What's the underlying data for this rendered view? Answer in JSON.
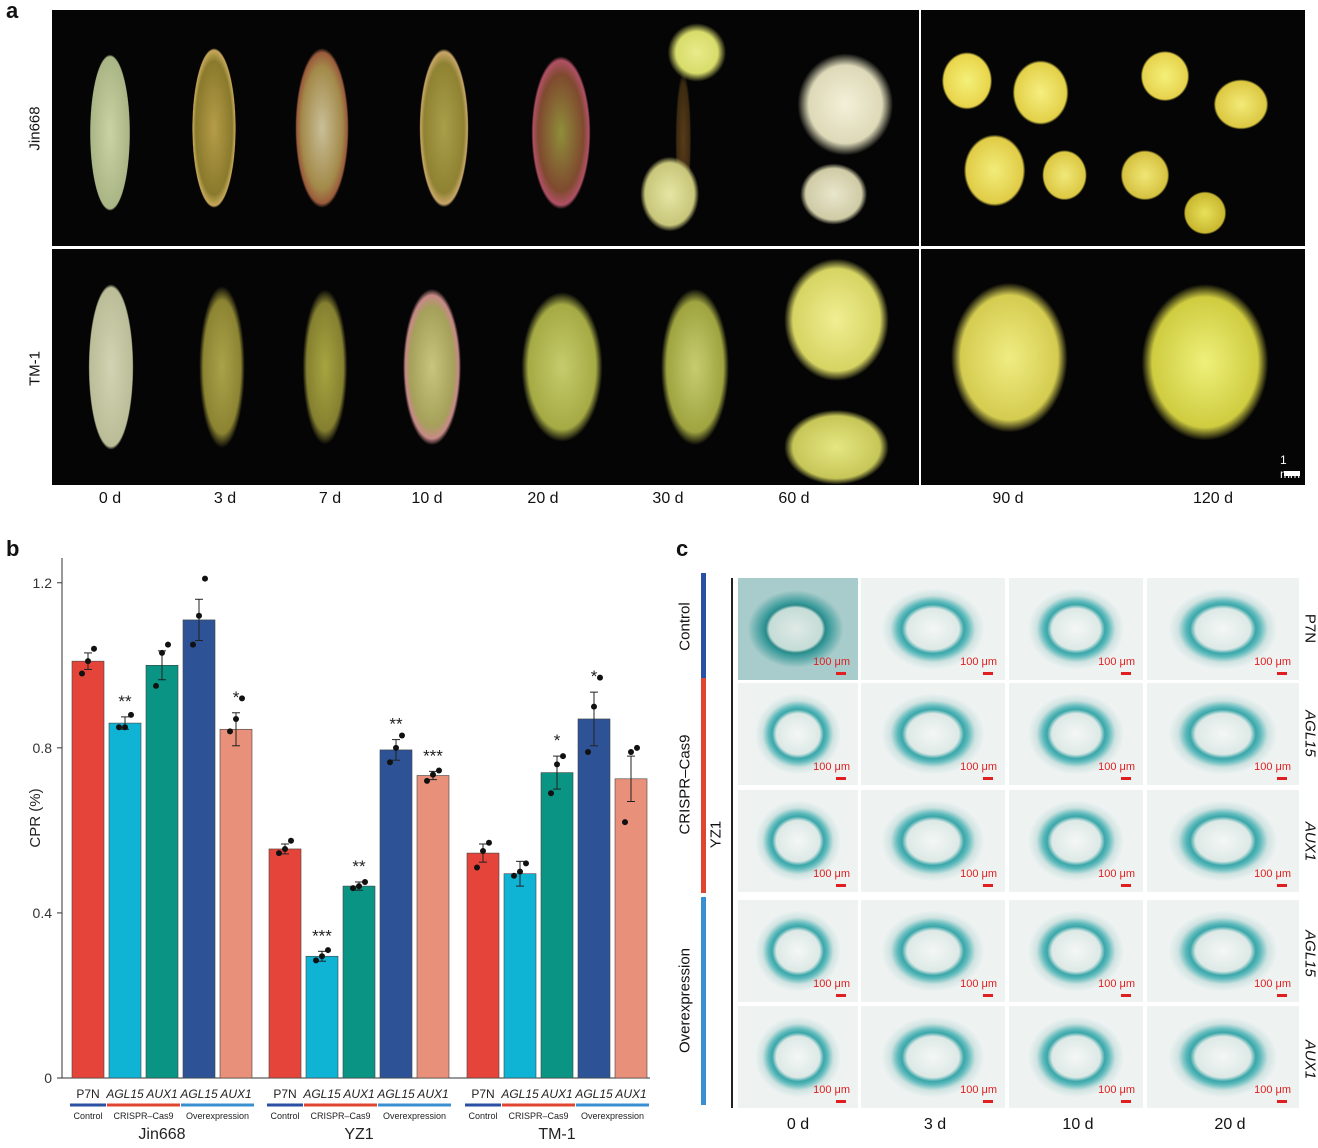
{
  "panel_a": {
    "letter": "a",
    "rows": [
      "Jin668",
      "TM-1"
    ],
    "days": [
      "0 d",
      "3 d",
      "7 d",
      "10 d",
      "20 d",
      "30 d",
      "60 d",
      "90 d",
      "120 d"
    ],
    "scale": "1 mm"
  },
  "panel_b": {
    "letter": "b",
    "ylabel": "CPR (%)"
  },
  "panel_c": {
    "letter": "c",
    "groups": [
      {
        "label": "Control",
        "color": "#2b4fa3"
      },
      {
        "label": "CRISPR–Cas9",
        "color": "#e0462f"
      },
      {
        "label": "Overexpression",
        "color": "#3a8fd0"
      }
    ],
    "cultivar": "YZ1",
    "row_genes": [
      "P7N",
      "AGL15",
      "AUX1",
      "AGL15",
      "AUX1"
    ],
    "days": [
      "0 d",
      "3 d",
      "10 d",
      "20 d"
    ],
    "scale_label": "100 μm"
  },
  "chart_data": {
    "type": "bar",
    "ylabel": "CPR (%)",
    "ylim": [
      0,
      1.26
    ],
    "yticks": [
      0,
      0.4,
      0.8,
      1.2
    ],
    "categories": [
      "P7N",
      "AGL15",
      "AUX1",
      "AGL15",
      "AUX1"
    ],
    "category_italic": [
      false,
      true,
      true,
      true,
      true
    ],
    "subgroups": [
      {
        "label": "Control",
        "color": "#2b4fa3",
        "span": [
          0,
          0
        ]
      },
      {
        "label": "CRISPR–Cas9",
        "color": "#e0462f",
        "span": [
          1,
          2
        ]
      },
      {
        "label": "Overexpression",
        "color": "#3a8fd0",
        "span": [
          3,
          4
        ]
      }
    ],
    "bar_colors": [
      "#e5443a",
      "#0fb3d4",
      "#099483",
      "#2d5396",
      "#e9907a"
    ],
    "groups": [
      {
        "name": "Jin668",
        "values": [
          1.01,
          0.86,
          1.0,
          1.11,
          0.845
        ],
        "errors": [
          0.02,
          0.015,
          0.035,
          0.05,
          0.04
        ],
        "points": [
          [
            0.98,
            1.01,
            1.04
          ],
          [
            0.85,
            0.85,
            0.88
          ],
          [
            0.95,
            1.03,
            1.05
          ],
          [
            1.05,
            1.12,
            1.21
          ],
          [
            0.84,
            0.87,
            0.92
          ]
        ],
        "stars": [
          "",
          "**",
          "",
          "",
          "*"
        ]
      },
      {
        "name": "YZ1",
        "values": [
          0.555,
          0.295,
          0.465,
          0.795,
          0.733
        ],
        "errors": [
          0.012,
          0.012,
          0.01,
          0.025,
          0.01
        ],
        "points": [
          [
            0.545,
            0.555,
            0.575
          ],
          [
            0.285,
            0.295,
            0.31
          ],
          [
            0.46,
            0.465,
            0.475
          ],
          [
            0.765,
            0.8,
            0.83
          ],
          [
            0.72,
            0.735,
            0.745
          ]
        ],
        "stars": [
          "",
          "***",
          "**",
          "**",
          "***"
        ]
      },
      {
        "name": "TM-1",
        "values": [
          0.545,
          0.495,
          0.74,
          0.87,
          0.725
        ],
        "errors": [
          0.022,
          0.03,
          0.04,
          0.065,
          0.055
        ],
        "points": [
          [
            0.51,
            0.55,
            0.57
          ],
          [
            0.49,
            0.5,
            0.52
          ],
          [
            0.69,
            0.76,
            0.78
          ],
          [
            0.79,
            0.9,
            0.97
          ],
          [
            0.62,
            0.79,
            0.8
          ]
        ],
        "stars": [
          "",
          "",
          "*",
          "*",
          ""
        ]
      }
    ]
  }
}
